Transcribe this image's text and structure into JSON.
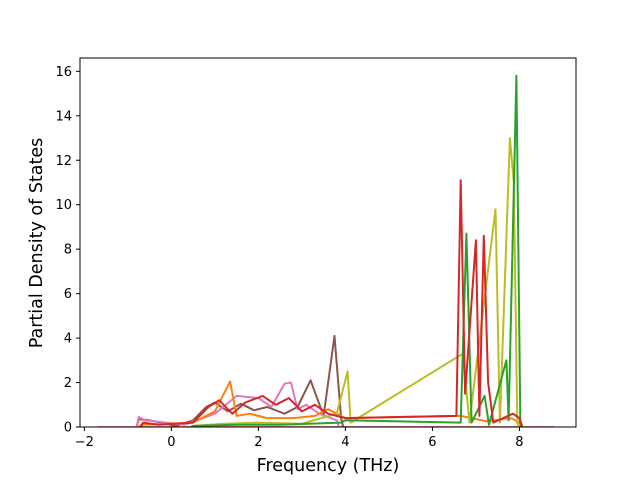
{
  "chart_data": {
    "type": "line",
    "title": "",
    "xlabel": "Frequency (THz)",
    "ylabel": "Partial Density of States",
    "xlim": [
      -2.1,
      9.3
    ],
    "ylim": [
      0,
      16.6
    ],
    "xticks": [
      -2,
      0,
      2,
      4,
      6,
      8
    ],
    "yticks": [
      0,
      2,
      4,
      6,
      8,
      10,
      12,
      14,
      16
    ],
    "grid": false,
    "legend": "none",
    "data_range": [
      -1.7,
      8.8
    ],
    "colors": [
      "#1f77b4",
      "#ff7f0e",
      "#2ca02c",
      "#d62728",
      "#9467bd",
      "#8c564b",
      "#e377c2",
      "#7f7f7f",
      "#bcbd22",
      "#17becf"
    ],
    "series": [
      {
        "color": "#8c564b",
        "points": [
          [
            -0.75,
            0.35
          ],
          [
            -0.5,
            0.3
          ],
          [
            0.1,
            0.05
          ],
          [
            0.5,
            0.3
          ],
          [
            0.8,
            0.9
          ],
          [
            1.0,
            1.1
          ],
          [
            1.3,
            0.7
          ],
          [
            1.6,
            1.05
          ],
          [
            1.9,
            0.75
          ],
          [
            2.2,
            0.9
          ],
          [
            2.6,
            0.6
          ],
          [
            2.9,
            0.9
          ],
          [
            3.2,
            2.1
          ],
          [
            3.5,
            0.5
          ],
          [
            3.75,
            4.1
          ],
          [
            3.9,
            0.4
          ]
        ]
      },
      {
        "color": "#e377c2",
        "points": [
          [
            -0.75,
            0.45
          ],
          [
            -0.6,
            0.3
          ],
          [
            0.3,
            0.1
          ],
          [
            1.0,
            0.6
          ],
          [
            1.5,
            1.4
          ],
          [
            2.0,
            1.3
          ],
          [
            2.3,
            0.9
          ],
          [
            2.6,
            1.95
          ],
          [
            2.75,
            2.0
          ],
          [
            2.9,
            0.8
          ],
          [
            3.1,
            1.0
          ],
          [
            3.4,
            0.6
          ],
          [
            3.8,
            0.3
          ]
        ]
      },
      {
        "color": "#ff7f0e",
        "points": [
          [
            -0.7,
            0.1
          ],
          [
            0.5,
            0.2
          ],
          [
            1.0,
            0.7
          ],
          [
            1.35,
            2.05
          ],
          [
            1.5,
            0.5
          ],
          [
            1.8,
            0.6
          ],
          [
            2.2,
            0.4
          ],
          [
            2.8,
            0.4
          ],
          [
            3.3,
            0.5
          ],
          [
            3.6,
            0.8
          ],
          [
            4.0,
            0.4
          ],
          [
            6.65,
            0.5
          ],
          [
            7.25,
            0.25
          ],
          [
            7.8,
            0.4
          ],
          [
            8.0,
            0.2
          ]
        ]
      },
      {
        "color": "#bcbd22",
        "points": [
          [
            0.5,
            0.05
          ],
          [
            1.2,
            0.15
          ],
          [
            2.0,
            0.2
          ],
          [
            3.0,
            0.15
          ],
          [
            3.8,
            0.6
          ],
          [
            4.05,
            2.5
          ],
          [
            4.12,
            0.2
          ],
          [
            6.7,
            3.3
          ],
          [
            6.85,
            0.2
          ],
          [
            7.45,
            9.8
          ],
          [
            7.55,
            0.2
          ],
          [
            7.78,
            13.0
          ],
          [
            7.87,
            11.0
          ],
          [
            7.95,
            0.2
          ]
        ]
      },
      {
        "color": "#2ca02c",
        "points": [
          [
            0.5,
            0.05
          ],
          [
            1.5,
            0.1
          ],
          [
            2.5,
            0.1
          ],
          [
            3.9,
            0.2
          ],
          [
            4.0,
            0.3
          ],
          [
            6.65,
            0.2
          ],
          [
            6.78,
            8.7
          ],
          [
            6.9,
            0.2
          ],
          [
            7.2,
            1.4
          ],
          [
            7.3,
            0.1
          ],
          [
            7.7,
            3.0
          ],
          [
            7.75,
            0.3
          ],
          [
            7.93,
            15.8
          ],
          [
            8.02,
            0.3
          ]
        ]
      },
      {
        "color": "#d62728",
        "points": [
          [
            -0.65,
            0.2
          ],
          [
            -0.3,
            0.1
          ],
          [
            0.5,
            0.2
          ],
          [
            0.85,
            0.9
          ],
          [
            1.1,
            1.2
          ],
          [
            1.4,
            0.6
          ],
          [
            1.7,
            1.1
          ],
          [
            2.1,
            1.4
          ],
          [
            2.4,
            1.0
          ],
          [
            2.7,
            1.3
          ],
          [
            3.0,
            0.7
          ],
          [
            3.3,
            1.0
          ],
          [
            3.6,
            0.6
          ],
          [
            4.0,
            0.4
          ],
          [
            6.55,
            0.5
          ],
          [
            6.65,
            11.1
          ],
          [
            6.75,
            1.5
          ],
          [
            7.0,
            8.4
          ],
          [
            7.08,
            0.5
          ],
          [
            7.18,
            8.6
          ],
          [
            7.28,
            2.0
          ],
          [
            7.4,
            0.2
          ],
          [
            7.85,
            0.6
          ],
          [
            8.0,
            0.4
          ]
        ]
      }
    ]
  }
}
